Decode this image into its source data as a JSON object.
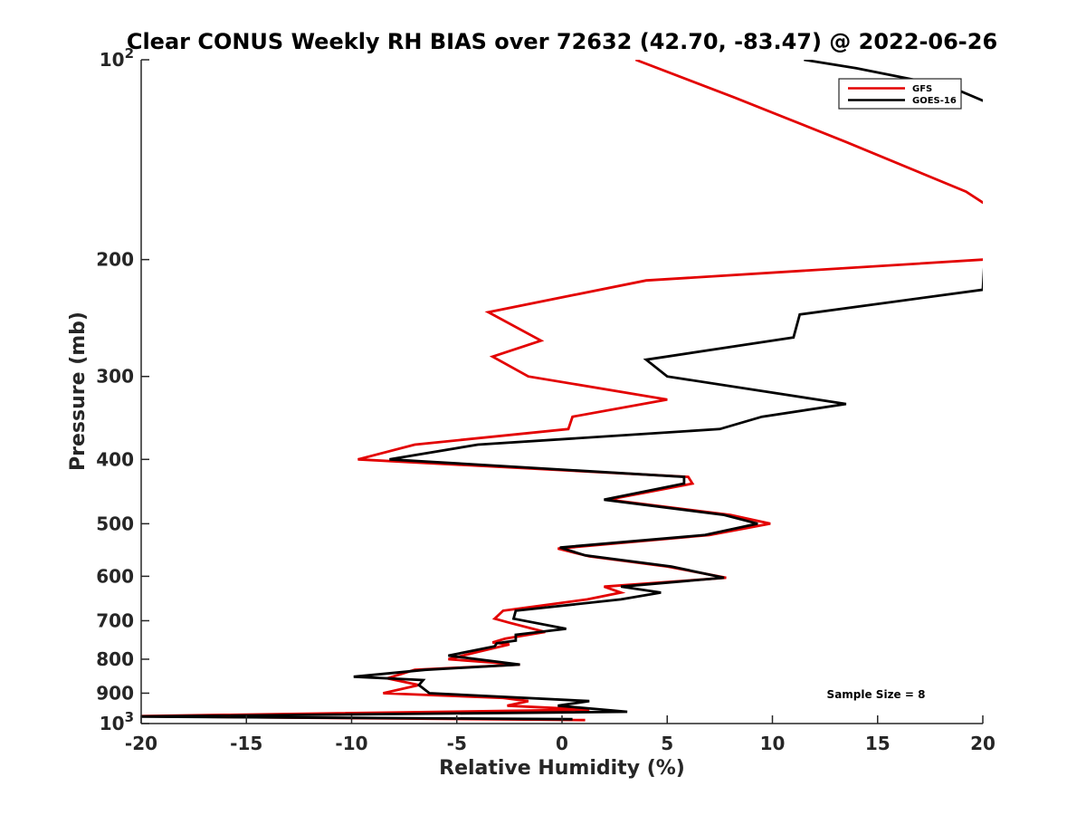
{
  "chart_data": {
    "type": "line",
    "title": "Clear CONUS Weekly RH BIAS over 72632 (42.70, -83.47) @ 2022-06-26",
    "xlabel": "Relative Humidity (%)",
    "ylabel": "Pressure (mb)",
    "xlim": [
      -20,
      20
    ],
    "ylim": [
      100,
      1000
    ],
    "y_scale": "log",
    "y_reversed": true,
    "grid": false,
    "legend_position": "top-right",
    "x_ticks": [
      -20,
      -15,
      -10,
      -5,
      0,
      5,
      10,
      15,
      20
    ],
    "x_tick_labels": [
      "-20",
      "-15",
      "-10",
      "-5",
      "0",
      "5",
      "10",
      "15",
      "20"
    ],
    "y_ticks": [
      100,
      200,
      300,
      400,
      500,
      600,
      700,
      800,
      900,
      1000
    ],
    "y_tick_labels": [
      {
        "base": "10",
        "exp": "2"
      },
      {
        "base": "200",
        "exp": ""
      },
      {
        "base": "300",
        "exp": ""
      },
      {
        "base": "400",
        "exp": ""
      },
      {
        "base": "500",
        "exp": ""
      },
      {
        "base": "600",
        "exp": ""
      },
      {
        "base": "700",
        "exp": ""
      },
      {
        "base": "800",
        "exp": ""
      },
      {
        "base": "900",
        "exp": ""
      },
      {
        "base": "10",
        "exp": "3"
      }
    ],
    "annotation": "Sample Size = 8",
    "series": [
      {
        "name": "GFS",
        "color": "#e30000",
        "points": [
          [
            3.5,
            100
          ],
          [
            8.2,
            114
          ],
          [
            13.5,
            133
          ],
          [
            19.2,
            158
          ],
          [
            20.5,
            168
          ],
          [
            20.5,
            195
          ],
          [
            20,
            200
          ],
          [
            4,
            215
          ],
          [
            -3.5,
            240
          ],
          [
            -1,
            265
          ],
          [
            -3.3,
            280
          ],
          [
            -1.6,
            300
          ],
          [
            5,
            325
          ],
          [
            0.5,
            345
          ],
          [
            0.3,
            360
          ],
          [
            -7,
            380
          ],
          [
            -9.7,
            400
          ],
          [
            6,
            425
          ],
          [
            6.2,
            435
          ],
          [
            2.2,
            460
          ],
          [
            8,
            485
          ],
          [
            9.9,
            500
          ],
          [
            7,
            520
          ],
          [
            -0.2,
            545
          ],
          [
            1.3,
            560
          ],
          [
            5,
            580
          ],
          [
            7.8,
            603
          ],
          [
            2,
            622
          ],
          [
            2.8,
            635
          ],
          [
            1.2,
            650
          ],
          [
            -2.8,
            676
          ],
          [
            -3.2,
            695
          ],
          [
            -2.5,
            705
          ],
          [
            -0.8,
            728
          ],
          [
            -2.7,
            745
          ],
          [
            -3.3,
            755
          ],
          [
            -2.5,
            760
          ],
          [
            -4,
            780
          ],
          [
            -5.4,
            800
          ],
          [
            -2,
            815
          ],
          [
            -7,
            830
          ],
          [
            -8.3,
            855
          ],
          [
            -6.8,
            875
          ],
          [
            -8.5,
            900
          ],
          [
            -2.8,
            915
          ],
          [
            -1.6,
            925
          ],
          [
            -2.6,
            940
          ],
          [
            1.3,
            953
          ],
          [
            -20.5,
            975
          ],
          [
            1.1,
            988
          ]
        ]
      },
      {
        "name": "GOES-16",
        "color": "#000000",
        "points": [
          [
            11.5,
            100
          ],
          [
            14,
            103
          ],
          [
            18.5,
            110
          ],
          [
            20.5,
            117
          ],
          [
            20,
            222
          ],
          [
            11.3,
            242
          ],
          [
            11,
            262
          ],
          [
            4,
            283
          ],
          [
            5,
            300
          ],
          [
            13.5,
            330
          ],
          [
            9.5,
            345
          ],
          [
            7.5,
            360
          ],
          [
            -4,
            380
          ],
          [
            -8.2,
            400
          ],
          [
            5.8,
            425
          ],
          [
            5.8,
            435
          ],
          [
            2,
            460
          ],
          [
            7.7,
            485
          ],
          [
            9.3,
            500
          ],
          [
            6.8,
            520
          ],
          [
            -0.1,
            543
          ],
          [
            1.1,
            558
          ],
          [
            5.2,
            580
          ],
          [
            7.7,
            603
          ],
          [
            2.8,
            622
          ],
          [
            4.7,
            635
          ],
          [
            2.8,
            650
          ],
          [
            -2.2,
            676
          ],
          [
            -2.3,
            695
          ],
          [
            0.2,
            720
          ],
          [
            -2.2,
            735
          ],
          [
            -2.2,
            750
          ],
          [
            -3.1,
            757
          ],
          [
            -3.2,
            765
          ],
          [
            -5.4,
            790
          ],
          [
            -2,
            815
          ],
          [
            -6.5,
            830
          ],
          [
            -9.9,
            850
          ],
          [
            -6.6,
            860
          ],
          [
            -6.8,
            875
          ],
          [
            -6.3,
            900
          ],
          [
            1.3,
            925
          ],
          [
            -0.2,
            940
          ],
          [
            3.1,
            960
          ],
          [
            -20.5,
            976
          ],
          [
            0.5,
            985
          ]
        ]
      }
    ]
  }
}
